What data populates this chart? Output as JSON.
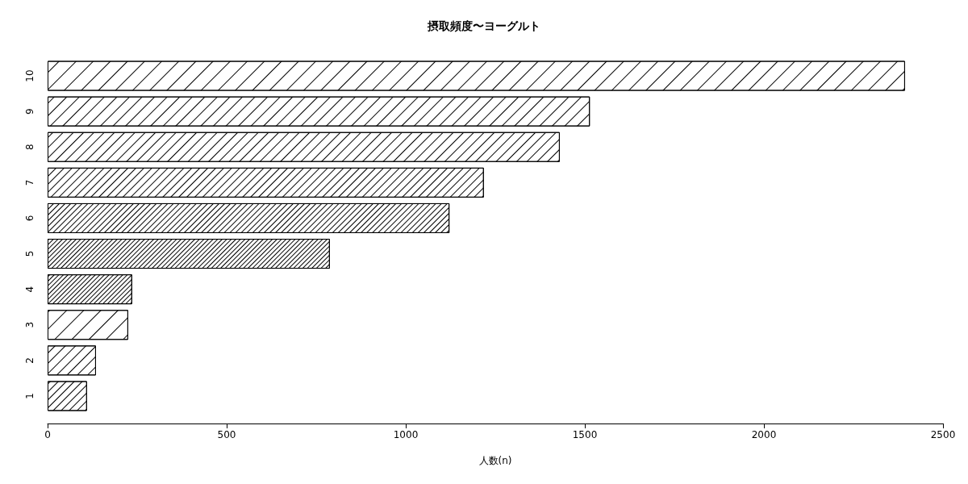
{
  "chart_data": {
    "type": "bar",
    "orientation": "horizontal",
    "title": "摂取頻度〜ヨーグルト",
    "xlabel": "人数(n)",
    "categories": [
      "10",
      "9",
      "8",
      "7",
      "6",
      "5",
      "4",
      "3",
      "2",
      "1"
    ],
    "values": [
      2394,
      1514,
      1430,
      1218,
      1122,
      788,
      236,
      225,
      135,
      110
    ],
    "color": "#ffffff",
    "xlim": [
      0,
      2500
    ],
    "xticks": [
      0,
      500,
      1000,
      1500,
      2000,
      2500
    ],
    "grid": false
  }
}
